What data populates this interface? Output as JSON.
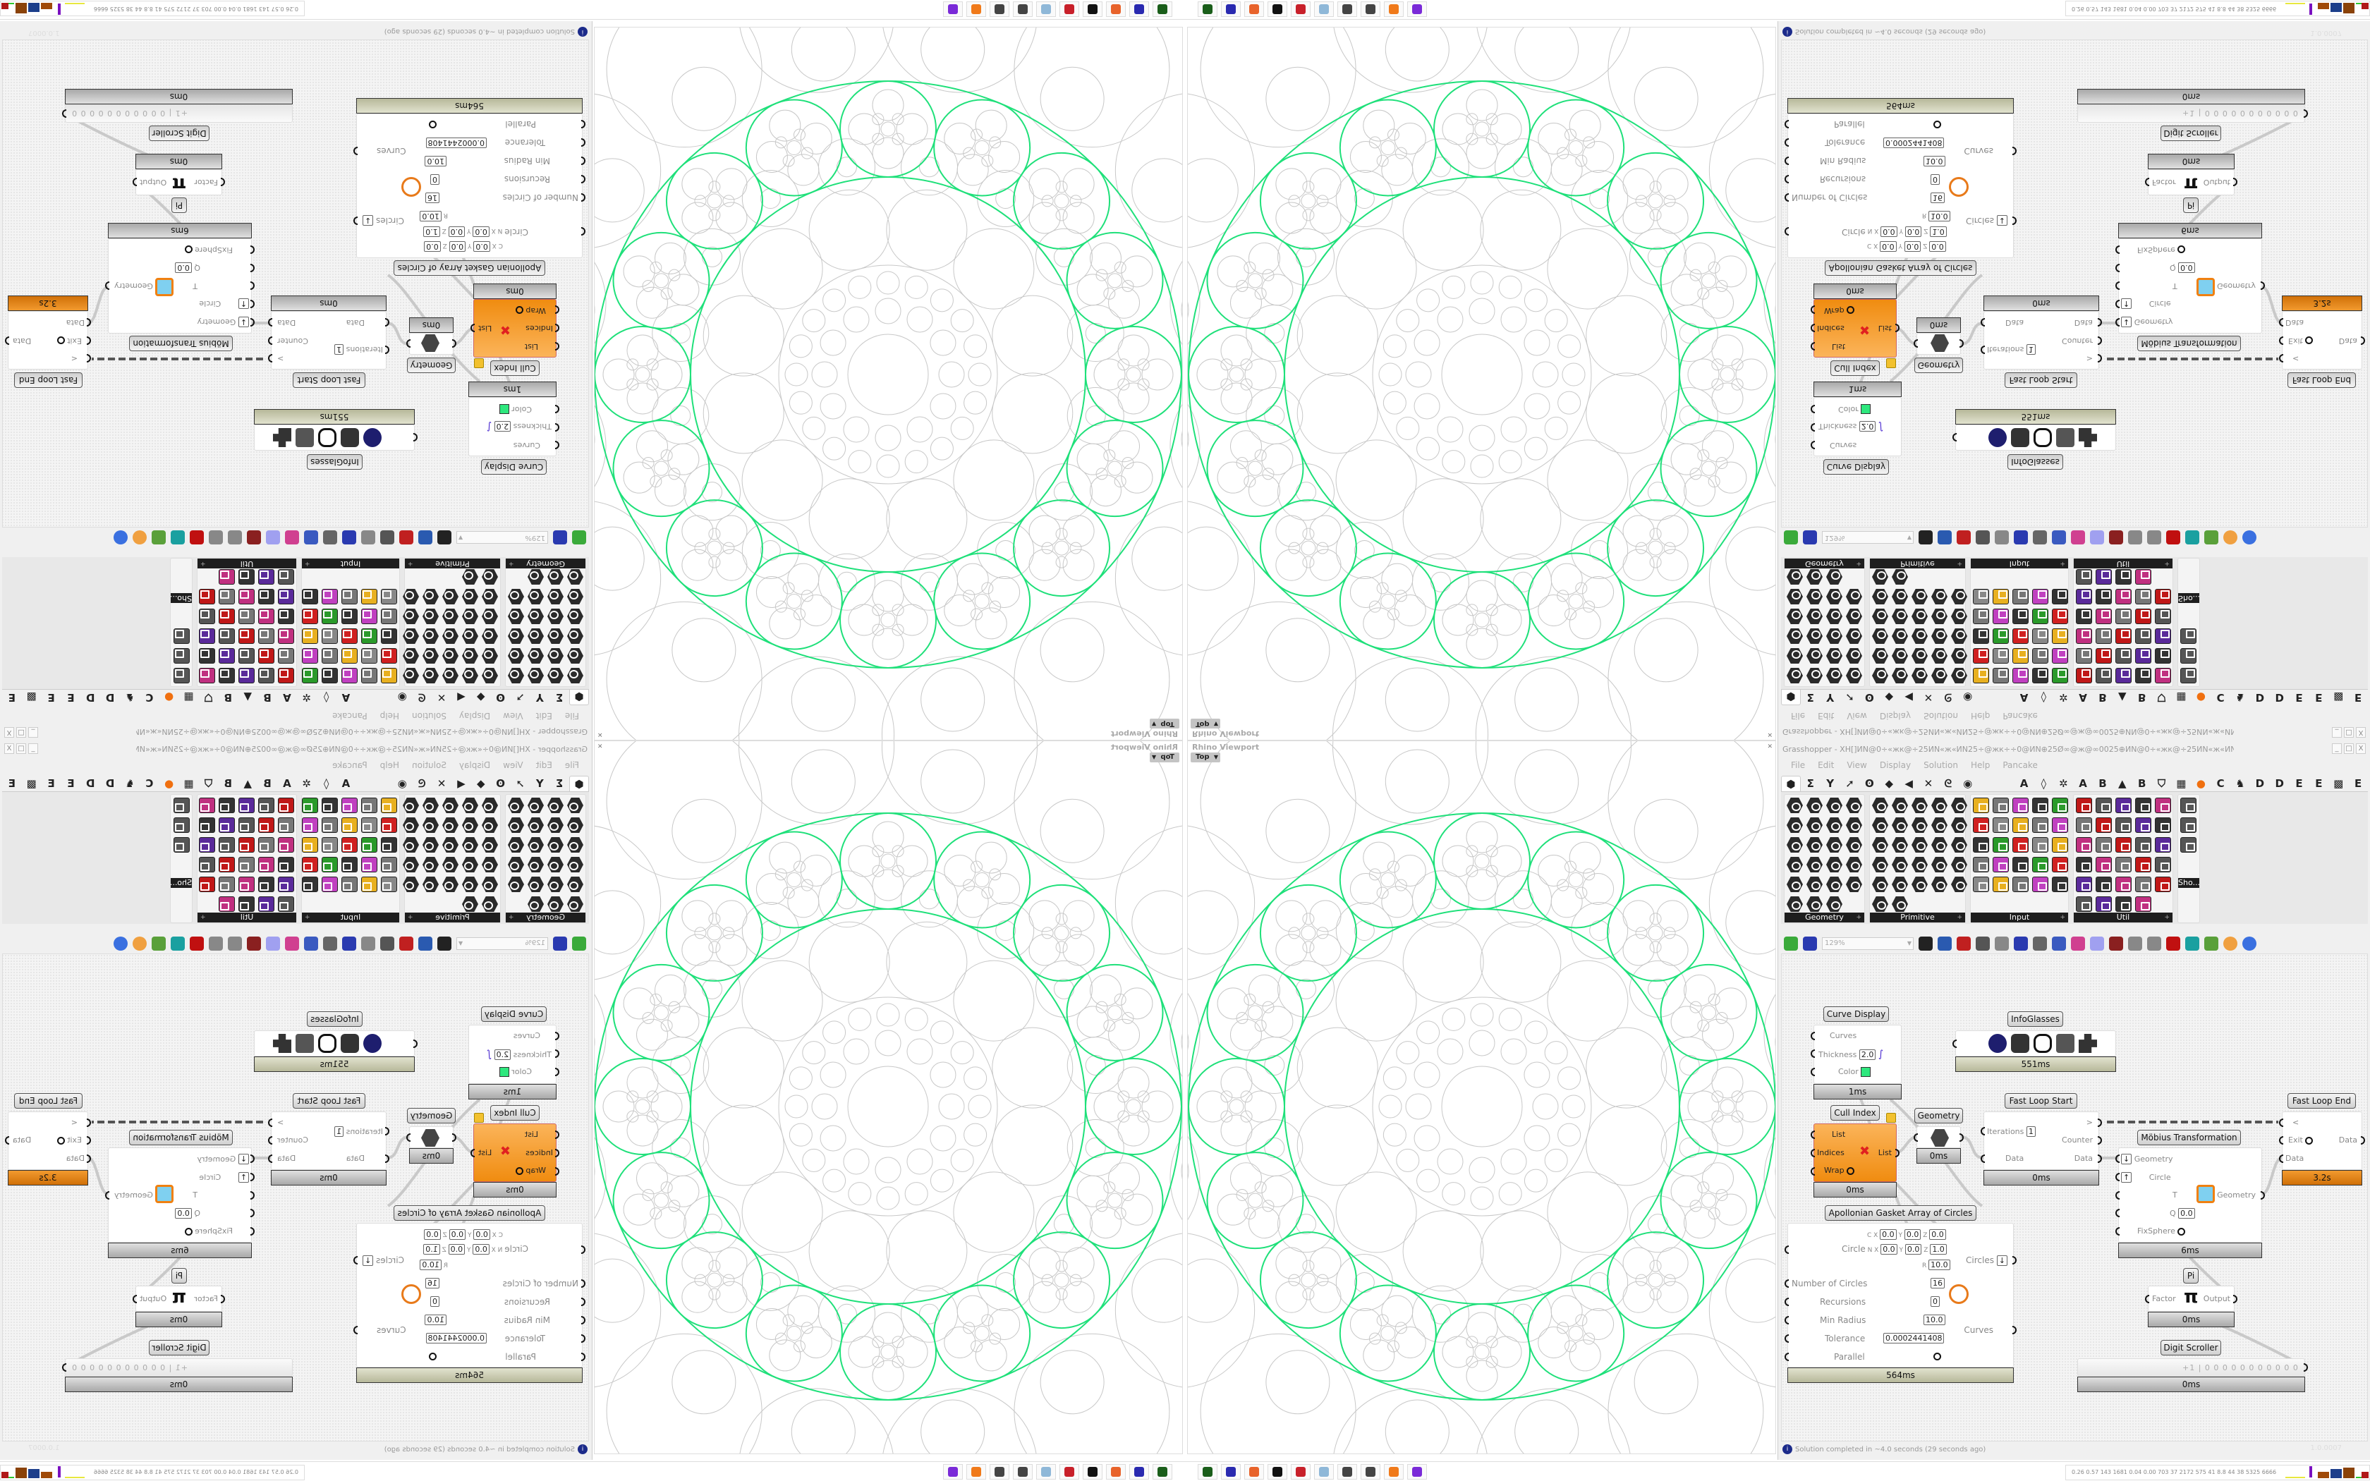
{
  "viewport": {
    "label": "Rhino Viewport",
    "view": "Top",
    "close": "✕",
    "accent": "#1fe07a"
  },
  "gh": {
    "title": "Grasshopper - XH[]ИN@0÷«жк@÷25ИN«ж«ИN25÷@жк÷÷0@ИN⊕25Ø∞@ж@∞0025⊕ИN@0÷«жк@÷25ИN«ж«ИN25÷@жк÷÷0@ИN*",
    "window_buttons": [
      "_",
      "□",
      "X"
    ],
    "menu": [
      "File",
      "Edit",
      "View",
      "Display",
      "Solution",
      "Help",
      "Pancake"
    ],
    "tabs": [
      {
        "name": "params",
        "glyph": "⬢"
      },
      {
        "name": "maths",
        "glyph": "Σ"
      },
      {
        "name": "sets",
        "glyph": "Y"
      },
      {
        "name": "vector",
        "glyph": "➚"
      },
      {
        "name": "curve",
        "glyph": "ʘ"
      },
      {
        "name": "surface",
        "glyph": "◆"
      },
      {
        "name": "mesh",
        "glyph": "◀"
      },
      {
        "name": "intersect",
        "glyph": "✕"
      },
      {
        "name": "transform",
        "glyph": "ᘓ"
      },
      {
        "name": "display",
        "glyph": "◉"
      },
      {
        "name": "tab-a",
        "glyph": "A"
      },
      {
        "name": "leaf",
        "glyph": "◊"
      },
      {
        "name": "puzzle",
        "glyph": "✲"
      },
      {
        "name": "tab-a2",
        "glyph": "A"
      },
      {
        "name": "tab-b",
        "glyph": "B"
      },
      {
        "name": "mountain",
        "glyph": "▲"
      },
      {
        "name": "tab-b2",
        "glyph": "B"
      },
      {
        "name": "shield",
        "glyph": "⛉"
      },
      {
        "name": "grid",
        "glyph": "▦"
      },
      {
        "name": "orange-circle",
        "glyph": "●"
      },
      {
        "name": "tab-c",
        "glyph": "C"
      },
      {
        "name": "rooster",
        "glyph": "♞"
      },
      {
        "name": "tab-d",
        "glyph": "D"
      },
      {
        "name": "tab-d2",
        "glyph": "D"
      },
      {
        "name": "tab-e",
        "glyph": "E"
      },
      {
        "name": "tab-e2",
        "glyph": "E"
      },
      {
        "name": "grid-dots",
        "glyph": "▩"
      },
      {
        "name": "tab-e3",
        "glyph": "E"
      }
    ],
    "palette": [
      {
        "label": "Geometry",
        "cols": 4,
        "shape": "hex",
        "icons": [
          "box",
          "curve",
          "mesh-param",
          "circle",
          "field",
          "surface",
          "brep",
          "line",
          "vector",
          "plane",
          "text",
          "twisted-box",
          "point",
          "rectangle",
          "geometry",
          "mesh-face",
          "arc",
          "brep-face",
          "transform",
          "atom",
          "group",
          "hatch",
          "magnet"
        ]
      },
      {
        "label": "Primitive",
        "cols": 5,
        "shape": "hex",
        "icons": [
          "boolean",
          "data",
          "matrix",
          "integer",
          "path",
          "complex",
          "shader",
          "time",
          "domain",
          "file-path",
          "cull",
          "unicode",
          "interval",
          "guid",
          "number",
          "integer-7",
          "domain2",
          "tree",
          "colour",
          "number-01",
          "grid",
          "text-c",
          "domain3",
          "string-a",
          "id",
          "sphere",
          "script"
        ]
      },
      {
        "label": "Input",
        "cols": 5,
        "shape": "sq",
        "icons": [
          "import",
          "button",
          "prism",
          "3dm",
          "goo",
          "gradient",
          "mdsl",
          "paint",
          "xyz",
          "toggle",
          "swatch",
          "colour-wheel",
          "img",
          "knob",
          "checker",
          "graph-mapper",
          "pdb",
          "panel",
          "calendar",
          "control-knob",
          "shp",
          "list",
          "clock",
          "value-list",
          "id-tag"
        ]
      },
      {
        "label": "Util",
        "cols": 5,
        "shape": "sq",
        "icons": [
          "cherries",
          "galapagos",
          "arrow",
          "c-script",
          "a-script",
          "play",
          "rec",
          "zoom",
          "spiral",
          "disk",
          "axes",
          "pencil",
          "timer",
          "seven",
          "flask",
          "tree",
          "valve",
          "fire",
          "edit",
          "fx",
          "circle",
          "cycle",
          "python",
          "zero-one",
          "palette",
          "abc",
          "arrow-right",
          "gauge",
          "cross"
        ]
      },
      {
        "label": "Sho...",
        "cols": 1,
        "shape": "sq",
        "icons": [
          "infoglasses",
          "infoglasses-2",
          "presentation"
        ]
      }
    ],
    "toolbar": {
      "zoom": "129%",
      "icons": [
        "open-file",
        "save",
        "zoom-extents",
        "preview",
        "sketch",
        "bifocals",
        "at",
        "gha",
        "canvas",
        "search",
        "package",
        "lightbulb",
        "wires",
        "cluster",
        "chain",
        "red-gem",
        "teal-surface",
        "green-mesh",
        "shaded-sphere",
        "blue-sphere"
      ]
    },
    "status": "Solution completed in ~4.0 seconds (29 seconds ago)",
    "version": "1.0.0007"
  },
  "nodes": {
    "curve_display": {
      "title": "Curve Display",
      "inputs": [
        "Curves",
        "Thickness",
        "Color"
      ],
      "thickness": "2.0",
      "color": "#2ee87e",
      "time": "1ms"
    },
    "infoglasses": {
      "title": "InfoGlasses",
      "time": "551ms"
    },
    "cull_index": {
      "title": "Cull Index",
      "inputs": [
        "List",
        "Indices",
        "Wrap"
      ],
      "output": "List",
      "time": "0ms"
    },
    "geometry": {
      "title": "Geometry",
      "time": "0ms"
    },
    "fast_loop_start": {
      "title": "Fast Loop Start",
      "inputs": [
        "Iterations",
        "Data"
      ],
      "iterations": "1",
      "outputs": [
        ">",
        "Counter",
        "Data"
      ],
      "time": "0ms"
    },
    "fast_loop_end": {
      "title": "Fast Loop End",
      "inputs": [
        "<",
        "Exit",
        "Data"
      ],
      "output": "Data",
      "time": "3.2s"
    },
    "mobius": {
      "title": "Möbius Transformation",
      "inputs": [
        "Geometry",
        "Circle",
        "T",
        "Q",
        "FixSphere"
      ],
      "q": "0.0",
      "output": "Geometry",
      "time": "6ms"
    },
    "pi": {
      "title": "Pi",
      "input": "Factor",
      "output": "Output",
      "glyph": "π",
      "time": "0ms"
    },
    "digit_scroller": {
      "title": "Digit Scroller",
      "value": "+1 | 0 0 0 0 0 0 0 0 0 0 0",
      "time": "0ms"
    },
    "apollonian": {
      "title": "Apollonian Gasket Array of Circles",
      "c": [
        "0.0",
        "0.0",
        "0.0"
      ],
      "n": [
        "0.0",
        "0.0",
        "1.0"
      ],
      "r": "10.0",
      "circle_label": "Circle",
      "inputs": [
        "Number of Circles",
        "Recursions",
        "Min Radius",
        "Tolerance",
        "Parallel"
      ],
      "values": [
        "16",
        "0",
        "10.0",
        "0.0002441408"
      ],
      "outputs": [
        "Circles",
        "Curves"
      ],
      "time": "564ms"
    }
  },
  "taskbar": {
    "apps": [
      {
        "name": "gpu-monitor",
        "color": "#1a5e1a"
      },
      {
        "name": "floppy-64",
        "color": "#2a2ab0"
      },
      {
        "name": "firefox-nightly",
        "color": "#e8632b"
      },
      {
        "name": "rhino",
        "color": "#111111"
      },
      {
        "name": "red-app",
        "color": "#c8202a"
      },
      {
        "name": "notepad",
        "color": "#8fb8d8"
      },
      {
        "name": "glyph-app",
        "color": "#444444"
      },
      {
        "name": "glyph-app-2",
        "color": "#444444"
      },
      {
        "name": "firefox",
        "color": "#f07a1a"
      },
      {
        "name": "purple-owl",
        "color": "#7a2ad8"
      }
    ],
    "stats": "0.26  0.57  143  1681 0.04  0.00  703   37  2172  575   41   8.8   44   38  5325 6666"
  }
}
